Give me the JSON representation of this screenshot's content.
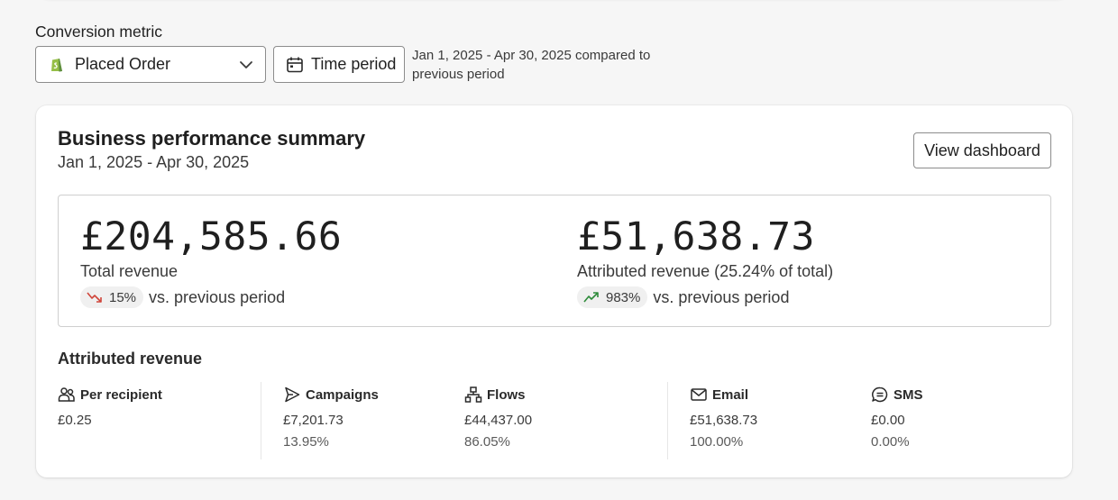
{
  "filters": {
    "conversion_label": "Conversion metric",
    "metric_select": "Placed Order",
    "time_period_button": "Time period",
    "range_note": "Jan 1, 2025 - Apr 30, 2025 compared to previous period"
  },
  "summary": {
    "title": "Business performance summary",
    "date_range": "Jan 1, 2025 - Apr 30, 2025",
    "view_dashboard": "View dashboard",
    "total": {
      "value": "£204,585.66",
      "label": "Total revenue",
      "change": "15%",
      "direction": "down",
      "vs": "vs. previous period"
    },
    "attributed": {
      "value": "£51,638.73",
      "label": "Attributed revenue (25.24% of total)",
      "change": "983%",
      "direction": "up",
      "vs": "vs. previous period"
    }
  },
  "attributed_revenue": {
    "title": "Attributed revenue",
    "columns": [
      {
        "icon": "people-icon",
        "label": "Per recipient",
        "value": "£0.25",
        "percent": ""
      },
      {
        "icon": "send-icon",
        "label": "Campaigns",
        "value": "£7,201.73",
        "percent": "13.95%"
      },
      {
        "icon": "flow-icon",
        "label": "Flows",
        "value": "£44,437.00",
        "percent": "86.05%"
      },
      {
        "icon": "mail-icon",
        "label": "Email",
        "value": "£51,638.73",
        "percent": "100.00%"
      },
      {
        "icon": "sms-icon",
        "label": "SMS",
        "value": "£0.00",
        "percent": "0.00%"
      }
    ]
  },
  "colors": {
    "down": "#d0453a",
    "up": "#2e8b3a",
    "shopify_green": "#5e8e3e"
  }
}
